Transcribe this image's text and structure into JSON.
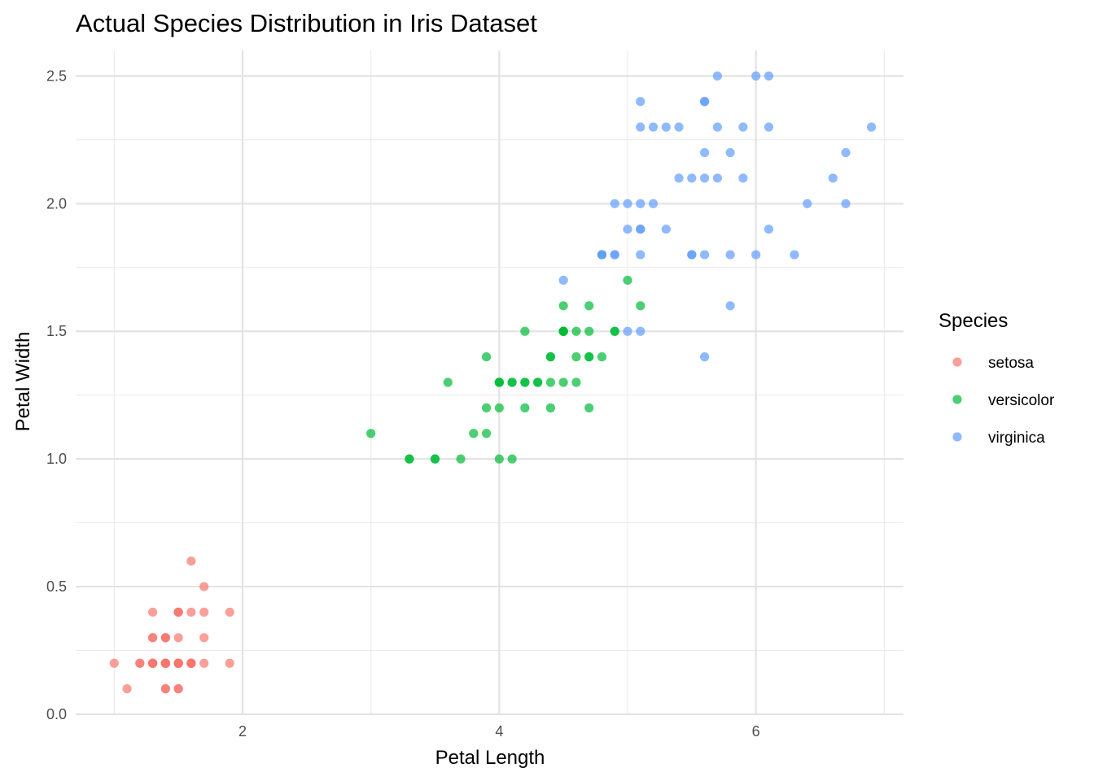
{
  "chart_data": {
    "type": "scatter",
    "title": "Actual Species Distribution in Iris Dataset",
    "xlabel": "Petal Length",
    "ylabel": "Petal Width",
    "xlim": [
      0.7,
      7.15
    ],
    "ylim": [
      0,
      2.6
    ],
    "x_ticks": [
      2,
      4,
      6
    ],
    "x_tick_labels": [
      "2",
      "4",
      "6"
    ],
    "x_minor_ticks": [
      1,
      3,
      5,
      7
    ],
    "y_ticks": [
      0.0,
      0.5,
      1.0,
      1.5,
      2.0,
      2.5
    ],
    "y_tick_labels": [
      "0.0",
      "0.5",
      "1.0",
      "1.5",
      "2.0",
      "2.5"
    ],
    "y_minor_ticks": [
      0.25,
      0.75,
      1.25,
      1.75,
      2.25
    ],
    "grid": true,
    "legend": {
      "title": "Species",
      "position": "right"
    },
    "series": [
      {
        "name": "setosa",
        "color": "#F8766D",
        "points": [
          [
            1.4,
            0.2
          ],
          [
            1.4,
            0.2
          ],
          [
            1.3,
            0.2
          ],
          [
            1.5,
            0.2
          ],
          [
            1.4,
            0.2
          ],
          [
            1.7,
            0.4
          ],
          [
            1.4,
            0.3
          ],
          [
            1.5,
            0.2
          ],
          [
            1.4,
            0.2
          ],
          [
            1.5,
            0.1
          ],
          [
            1.5,
            0.2
          ],
          [
            1.6,
            0.2
          ],
          [
            1.4,
            0.1
          ],
          [
            1.1,
            0.1
          ],
          [
            1.2,
            0.2
          ],
          [
            1.5,
            0.4
          ],
          [
            1.3,
            0.4
          ],
          [
            1.4,
            0.3
          ],
          [
            1.7,
            0.3
          ],
          [
            1.5,
            0.3
          ],
          [
            1.7,
            0.2
          ],
          [
            1.5,
            0.4
          ],
          [
            1.0,
            0.2
          ],
          [
            1.7,
            0.5
          ],
          [
            1.9,
            0.2
          ],
          [
            1.6,
            0.2
          ],
          [
            1.6,
            0.4
          ],
          [
            1.5,
            0.2
          ],
          [
            1.4,
            0.2
          ],
          [
            1.6,
            0.2
          ],
          [
            1.6,
            0.2
          ],
          [
            1.5,
            0.4
          ],
          [
            1.5,
            0.1
          ],
          [
            1.4,
            0.2
          ],
          [
            1.5,
            0.2
          ],
          [
            1.2,
            0.2
          ],
          [
            1.3,
            0.2
          ],
          [
            1.4,
            0.1
          ],
          [
            1.3,
            0.2
          ],
          [
            1.5,
            0.2
          ],
          [
            1.3,
            0.3
          ],
          [
            1.3,
            0.3
          ],
          [
            1.3,
            0.2
          ],
          [
            1.6,
            0.6
          ],
          [
            1.9,
            0.4
          ],
          [
            1.4,
            0.3
          ],
          [
            1.6,
            0.2
          ],
          [
            1.4,
            0.2
          ],
          [
            1.5,
            0.2
          ],
          [
            1.4,
            0.2
          ]
        ]
      },
      {
        "name": "versicolor",
        "color": "#00BA38",
        "points": [
          [
            4.7,
            1.4
          ],
          [
            4.5,
            1.5
          ],
          [
            4.9,
            1.5
          ],
          [
            4.0,
            1.3
          ],
          [
            4.6,
            1.5
          ],
          [
            4.5,
            1.3
          ],
          [
            4.7,
            1.6
          ],
          [
            3.3,
            1.0
          ],
          [
            4.6,
            1.3
          ],
          [
            3.9,
            1.4
          ],
          [
            3.5,
            1.0
          ],
          [
            4.2,
            1.5
          ],
          [
            4.0,
            1.0
          ],
          [
            4.7,
            1.4
          ],
          [
            3.6,
            1.3
          ],
          [
            4.4,
            1.4
          ],
          [
            4.5,
            1.5
          ],
          [
            4.1,
            1.0
          ],
          [
            4.5,
            1.5
          ],
          [
            3.9,
            1.1
          ],
          [
            4.8,
            1.8
          ],
          [
            4.0,
            1.3
          ],
          [
            4.9,
            1.5
          ],
          [
            4.7,
            1.2
          ],
          [
            4.3,
            1.3
          ],
          [
            4.4,
            1.4
          ],
          [
            4.8,
            1.4
          ],
          [
            5.0,
            1.7
          ],
          [
            4.5,
            1.5
          ],
          [
            3.5,
            1.0
          ],
          [
            3.8,
            1.1
          ],
          [
            3.7,
            1.0
          ],
          [
            3.9,
            1.2
          ],
          [
            5.1,
            1.6
          ],
          [
            4.5,
            1.5
          ],
          [
            4.5,
            1.6
          ],
          [
            4.7,
            1.5
          ],
          [
            4.4,
            1.3
          ],
          [
            4.1,
            1.3
          ],
          [
            4.0,
            1.3
          ],
          [
            4.4,
            1.2
          ],
          [
            4.6,
            1.4
          ],
          [
            4.0,
            1.2
          ],
          [
            3.3,
            1.0
          ],
          [
            4.2,
            1.3
          ],
          [
            4.2,
            1.2
          ],
          [
            4.2,
            1.3
          ],
          [
            4.3,
            1.3
          ],
          [
            3.0,
            1.1
          ],
          [
            4.1,
            1.3
          ]
        ]
      },
      {
        "name": "virginica",
        "color": "#619CFF",
        "points": [
          [
            6.0,
            2.5
          ],
          [
            5.1,
            1.9
          ],
          [
            5.9,
            2.1
          ],
          [
            5.6,
            1.8
          ],
          [
            5.8,
            2.2
          ],
          [
            6.6,
            2.1
          ],
          [
            4.5,
            1.7
          ],
          [
            6.3,
            1.8
          ],
          [
            5.8,
            1.8
          ],
          [
            6.1,
            2.5
          ],
          [
            5.1,
            2.0
          ],
          [
            5.3,
            1.9
          ],
          [
            5.5,
            2.1
          ],
          [
            5.0,
            2.0
          ],
          [
            5.1,
            2.4
          ],
          [
            5.3,
            2.3
          ],
          [
            5.5,
            1.8
          ],
          [
            6.7,
            2.2
          ],
          [
            6.9,
            2.3
          ],
          [
            5.0,
            1.5
          ],
          [
            5.7,
            2.3
          ],
          [
            4.9,
            2.0
          ],
          [
            6.7,
            2.0
          ],
          [
            4.9,
            1.8
          ],
          [
            5.7,
            2.1
          ],
          [
            6.0,
            1.8
          ],
          [
            4.8,
            1.8
          ],
          [
            4.9,
            1.8
          ],
          [
            5.6,
            2.1
          ],
          [
            5.8,
            1.6
          ],
          [
            6.1,
            1.9
          ],
          [
            6.4,
            2.0
          ],
          [
            5.6,
            2.2
          ],
          [
            5.1,
            1.5
          ],
          [
            5.6,
            1.4
          ],
          [
            6.1,
            2.3
          ],
          [
            5.6,
            2.4
          ],
          [
            5.5,
            1.8
          ],
          [
            4.8,
            1.8
          ],
          [
            5.4,
            2.1
          ],
          [
            5.6,
            2.4
          ],
          [
            5.1,
            2.3
          ],
          [
            5.1,
            1.9
          ],
          [
            5.9,
            2.3
          ],
          [
            5.7,
            2.5
          ],
          [
            5.2,
            2.3
          ],
          [
            5.0,
            1.9
          ],
          [
            5.2,
            2.0
          ],
          [
            5.4,
            2.3
          ],
          [
            5.1,
            1.8
          ]
        ]
      }
    ]
  }
}
